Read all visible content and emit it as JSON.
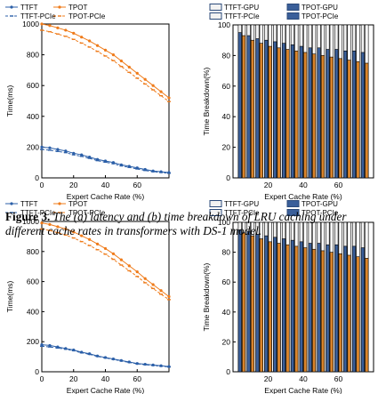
{
  "figure": {
    "label": "Figure 3.",
    "caption": "The (a) latency and (b) time breakdown of LRU caching under different cache rates in transformers with DS-1 model."
  },
  "colors": {
    "ttft": "#2b5fa8",
    "tpot": "#ef7b1a",
    "ttft_pcie": "#2b5fa8",
    "tpot_pcie": "#ef7b1a",
    "bar_gpu": "#f2f2f2",
    "bar_pcie": "#3a5f9a",
    "bar_tpot_gpu": "#ffffff",
    "bar_tpot_pcie": "#d9842b"
  },
  "chart_data": [
    {
      "type": "line",
      "panel": "top-left",
      "xlabel": "Expert Cache Rate (%)",
      "ylabel": "Time(ms)",
      "xlim": [
        0,
        80
      ],
      "ylim": [
        0,
        1000
      ],
      "xticks": [
        "0",
        "20",
        "40",
        "60"
      ],
      "yticks": [
        "0",
        "200",
        "400",
        "600",
        "800",
        "1000"
      ],
      "legend": [
        "TTFT",
        "TPOT",
        "TTFT-PCIe",
        "TPOT-PCIe"
      ],
      "x": [
        0,
        5,
        10,
        15,
        20,
        25,
        30,
        35,
        40,
        45,
        50,
        55,
        60,
        65,
        70,
        75,
        80
      ],
      "series": [
        {
          "name": "TTFT",
          "values": [
            200,
            195,
            185,
            175,
            160,
            150,
            135,
            120,
            110,
            100,
            85,
            75,
            65,
            55,
            45,
            40,
            35
          ]
        },
        {
          "name": "TPOT",
          "values": [
            1000,
            990,
            975,
            960,
            940,
            915,
            890,
            860,
            830,
            800,
            760,
            720,
            680,
            640,
            600,
            560,
            520
          ]
        },
        {
          "name": "TTFT-PCIe",
          "values": [
            185,
            180,
            172,
            164,
            150,
            140,
            127,
            112,
            102,
            92,
            78,
            68,
            58,
            48,
            40,
            35,
            30
          ]
        },
        {
          "name": "TPOT-PCIe",
          "values": [
            960,
            950,
            935,
            920,
            900,
            876,
            850,
            822,
            792,
            762,
            724,
            686,
            648,
            610,
            572,
            534,
            496
          ]
        }
      ]
    },
    {
      "type": "bar",
      "panel": "top-right",
      "xlabel": "Expert Cache Rate (%)",
      "ylabel": "Time Breakdown(%)",
      "xlim": [
        0,
        80
      ],
      "ylim": [
        0,
        100
      ],
      "xticks": [
        "20",
        "40",
        "60"
      ],
      "yticks": [
        "0",
        "20",
        "40",
        "60",
        "80",
        "100"
      ],
      "legend": [
        "TTFT-GPU",
        "TPOT-GPU",
        "TTFT-PCIe",
        "TPOT-PCIe"
      ],
      "categories": [
        5,
        10,
        15,
        20,
        25,
        30,
        35,
        40,
        45,
        50,
        55,
        60,
        65,
        70,
        75
      ],
      "series": [
        {
          "name": "TTFT-PCIe",
          "values": [
            95,
            93,
            91,
            90,
            89,
            88,
            87,
            86,
            85,
            85,
            84,
            84,
            83,
            83,
            82
          ]
        },
        {
          "name": "TPOT-PCIe",
          "values": [
            93,
            90,
            88,
            86,
            85,
            84,
            83,
            82,
            81,
            80,
            79,
            78,
            77,
            76,
            75
          ]
        }
      ]
    },
    {
      "type": "line",
      "panel": "bottom-left",
      "xlabel": "Expert Cache Rate (%)",
      "ylabel": "Time(ms)",
      "xlim": [
        0,
        80
      ],
      "ylim": [
        0,
        1000
      ],
      "xticks": [
        "0",
        "20",
        "40",
        "60"
      ],
      "yticks": [
        "0",
        "200",
        "400",
        "600",
        "800",
        "1000"
      ],
      "legend": [
        "TTFT",
        "TPOT",
        "TTFT-PCIe",
        "TPOT-PCIe"
      ],
      "x": [
        0,
        5,
        10,
        15,
        20,
        25,
        30,
        35,
        40,
        45,
        50,
        55,
        60,
        65,
        70,
        75,
        80
      ],
      "series": [
        {
          "name": "TTFT",
          "values": [
            180,
            175,
            165,
            155,
            145,
            130,
            120,
            105,
            95,
            85,
            75,
            65,
            55,
            50,
            45,
            40,
            35
          ]
        },
        {
          "name": "TPOT",
          "values": [
            990,
            980,
            965,
            950,
            930,
            905,
            880,
            850,
            820,
            785,
            745,
            705,
            665,
            620,
            580,
            540,
            500
          ]
        },
        {
          "name": "TTFT-PCIe",
          "values": [
            170,
            165,
            158,
            150,
            140,
            126,
            116,
            102,
            92,
            82,
            72,
            62,
            53,
            47,
            42,
            37,
            32
          ]
        },
        {
          "name": "TPOT-PCIe",
          "values": [
            950,
            940,
            925,
            910,
            890,
            866,
            840,
            812,
            782,
            748,
            710,
            672,
            634,
            592,
            554,
            516,
            480
          ]
        }
      ]
    },
    {
      "type": "bar",
      "panel": "bottom-right",
      "xlabel": "Expert Cache Rate (%)",
      "ylabel": "Time Breakdown(%)",
      "xlim": [
        0,
        80
      ],
      "ylim": [
        0,
        100
      ],
      "xticks": [
        "20",
        "40",
        "60"
      ],
      "yticks": [
        "0",
        "20",
        "40",
        "60",
        "80",
        "100"
      ],
      "legend": [
        "TTFT-GPU",
        "TPOT-GPU",
        "TTFT-PCIe",
        "TPOT-PCIe"
      ],
      "categories": [
        5,
        10,
        15,
        20,
        25,
        30,
        35,
        40,
        45,
        50,
        55,
        60,
        65,
        70,
        75
      ],
      "series": [
        {
          "name": "TTFT-PCIe",
          "values": [
            95,
            94,
            92,
            91,
            90,
            89,
            88,
            87,
            86,
            86,
            85,
            85,
            84,
            84,
            83
          ]
        },
        {
          "name": "TPOT-PCIe",
          "values": [
            93,
            91,
            89,
            87,
            86,
            85,
            84,
            83,
            82,
            81,
            80,
            79,
            78,
            77,
            76
          ]
        }
      ]
    }
  ]
}
